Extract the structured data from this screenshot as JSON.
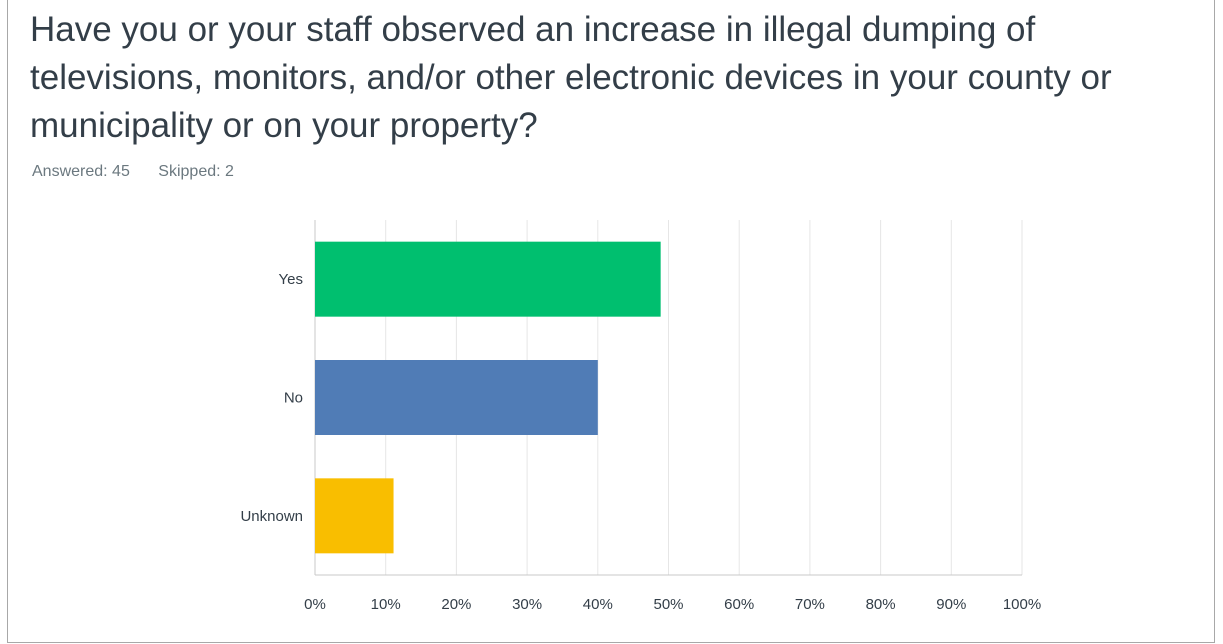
{
  "question": {
    "line1": "Have you or your staff observed an increase in illegal dumping of",
    "line2": "televisions, monitors, and/or other electronic devices in your county or",
    "line3": "municipality or on your property?"
  },
  "stats": {
    "answered": "Answered: 45",
    "skipped": "Skipped: 2"
  },
  "chart_data": {
    "type": "bar",
    "orientation": "horizontal",
    "categories": [
      "Yes",
      "No",
      "Unknown"
    ],
    "values": [
      48.89,
      40.0,
      11.11
    ],
    "colors": [
      "#00bf6f",
      "#507cb6",
      "#f9be00"
    ],
    "xlim": [
      0,
      100
    ],
    "x_ticks": [
      "0%",
      "10%",
      "20%",
      "30%",
      "40%",
      "50%",
      "60%",
      "70%",
      "80%",
      "90%",
      "100%"
    ],
    "grid": true
  }
}
